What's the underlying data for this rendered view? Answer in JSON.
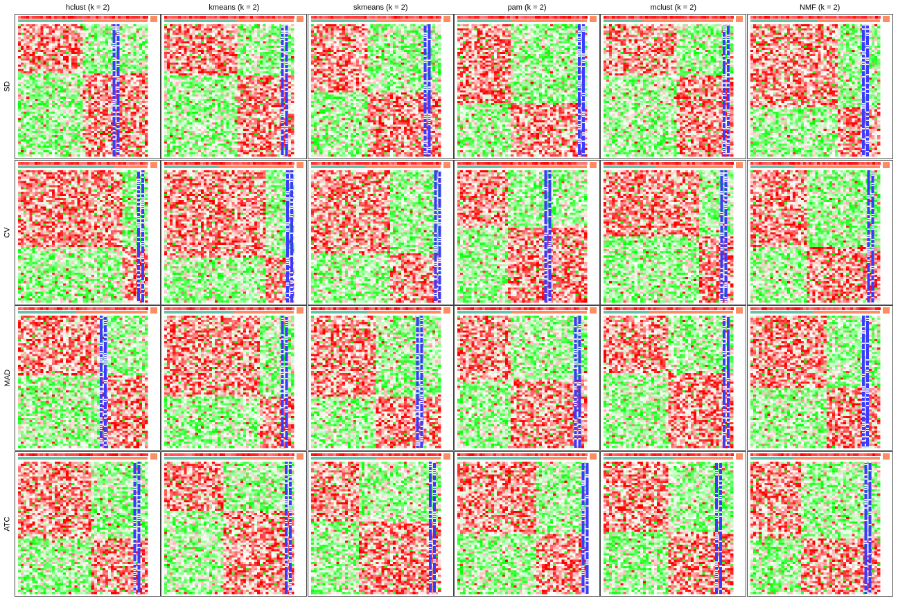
{
  "chart_data": {
    "type": "heatmap",
    "layout": "grid",
    "columns": [
      "hclust (k = 2)",
      "kmeans (k = 2)",
      "skmeans (k = 2)",
      "pam (k = 2)",
      "mclust (k = 2)",
      "NMF (k = 2)"
    ],
    "rows": [
      "SD",
      "CV",
      "MAD",
      "ATC"
    ],
    "value_range": [
      -2,
      2
    ],
    "colors": {
      "low": "#00ff00",
      "mid": "#ffffff",
      "high": "#ff0000",
      "class_1": "#66c2a5",
      "class_2": "#fc8d62",
      "side_bar": "#3b3bff",
      "frame": "#444444"
    },
    "panels": [
      [
        {
          "split": 0.5,
          "gap": 0.5,
          "bar": 0.73
        },
        {
          "split": 0.56,
          "gap": 0.56,
          "bar": 0.9
        },
        {
          "split": 0.5,
          "gap": 0.43,
          "bar": 0.87
        },
        {
          "split": 0.42,
          "gap": 0.4,
          "bar": 0.93
        },
        {
          "split": 0.3,
          "gap": 0.55,
          "bar": 0.92
        },
        {
          "split": 0.52,
          "gap": 0.66,
          "bar": 0.86
        }
      ],
      [
        {
          "split": 0.74,
          "gap": 0.8,
          "bar": 0.92
        },
        {
          "split": 0.42,
          "gap": 0.77,
          "bar": 0.94
        },
        {
          "split": 0.42,
          "gap": 0.6,
          "bar": 0.95
        },
        {
          "split": 0.34,
          "gap": 0.37,
          "bar": 0.67
        },
        {
          "split": 0.4,
          "gap": 0.73,
          "bar": 0.9
        },
        {
          "split": 0.34,
          "gap": 0.42,
          "bar": 0.9
        }
      ],
      [
        {
          "split": 0.45,
          "gap": 0.62,
          "bar": 0.63
        },
        {
          "split": 0.53,
          "gap": 0.72,
          "bar": 0.9
        },
        {
          "split": 0.44,
          "gap": 0.5,
          "bar": 0.81
        },
        {
          "split": 0.42,
          "gap": 0.4,
          "bar": 0.9
        },
        {
          "split": 0.35,
          "gap": 0.5,
          "bar": 0.92
        },
        {
          "split": 0.48,
          "gap": 0.57,
          "bar": 0.86
        }
      ],
      [
        {
          "split": 0.56,
          "gap": 0.55,
          "bar": 0.89
        },
        {
          "split": 0.6,
          "gap": 0.45,
          "bar": 0.93
        },
        {
          "split": 0.5,
          "gap": 0.35,
          "bar": 0.91
        },
        {
          "split": 0.64,
          "gap": 0.6,
          "bar": 0.96
        },
        {
          "split": 0.54,
          "gap": 0.48,
          "bar": 0.86
        },
        {
          "split": 0.33,
          "gap": 0.37,
          "bar": 0.88
        }
      ]
    ]
  }
}
